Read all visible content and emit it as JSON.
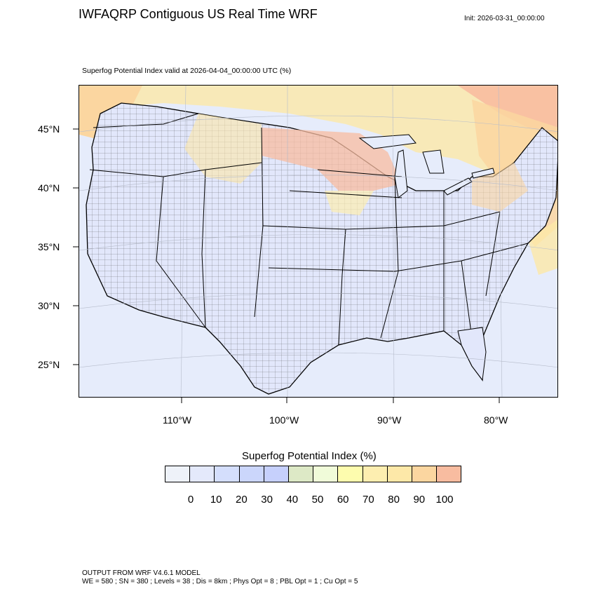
{
  "header": {
    "title": "IWFAQRP Contiguous US Real Time WRF",
    "init": "Init: 2026-03-31_00:00:00",
    "subtitle": "Superfog Potential Index valid at 2026-04-04_00:00:00 UTC   (%)"
  },
  "map": {
    "projection": "lambert-conformal",
    "region": "Contiguous US",
    "lat_labels": [
      "45°N",
      "40°N",
      "35°N",
      "30°N",
      "25°N"
    ],
    "lon_labels": [
      "110°W",
      "100°W",
      "90°W",
      "80°W"
    ],
    "colors": {
      "background_low": "#e6ecfb",
      "high_index": "#f6b59a",
      "mid_index": "#fde8a8",
      "borders": "#000000"
    }
  },
  "colorbar": {
    "title": "Superfog Potential Index  (%)",
    "colors": [
      "#eef2f9",
      "#e4e9fb",
      "#d4defc",
      "#cbd6fb",
      "#c6d0fc",
      "#dde9c6",
      "#f0fbd9",
      "#fdfcae",
      "#fdeeb0",
      "#fde8a8",
      "#fbd6a0",
      "#f8bca0"
    ],
    "labels": [
      "0",
      "10",
      "20",
      "30",
      "40",
      "50",
      "60",
      "70",
      "80",
      "90",
      "100"
    ]
  },
  "footer": {
    "line1": "OUTPUT FROM WRF V4.6.1 MODEL",
    "line2": "WE = 580 ; SN = 380 ; Levels = 38 ; Dis = 8km ; Phys Opt = 8 ; PBL Opt = 1 ; Cu Opt = 5"
  }
}
